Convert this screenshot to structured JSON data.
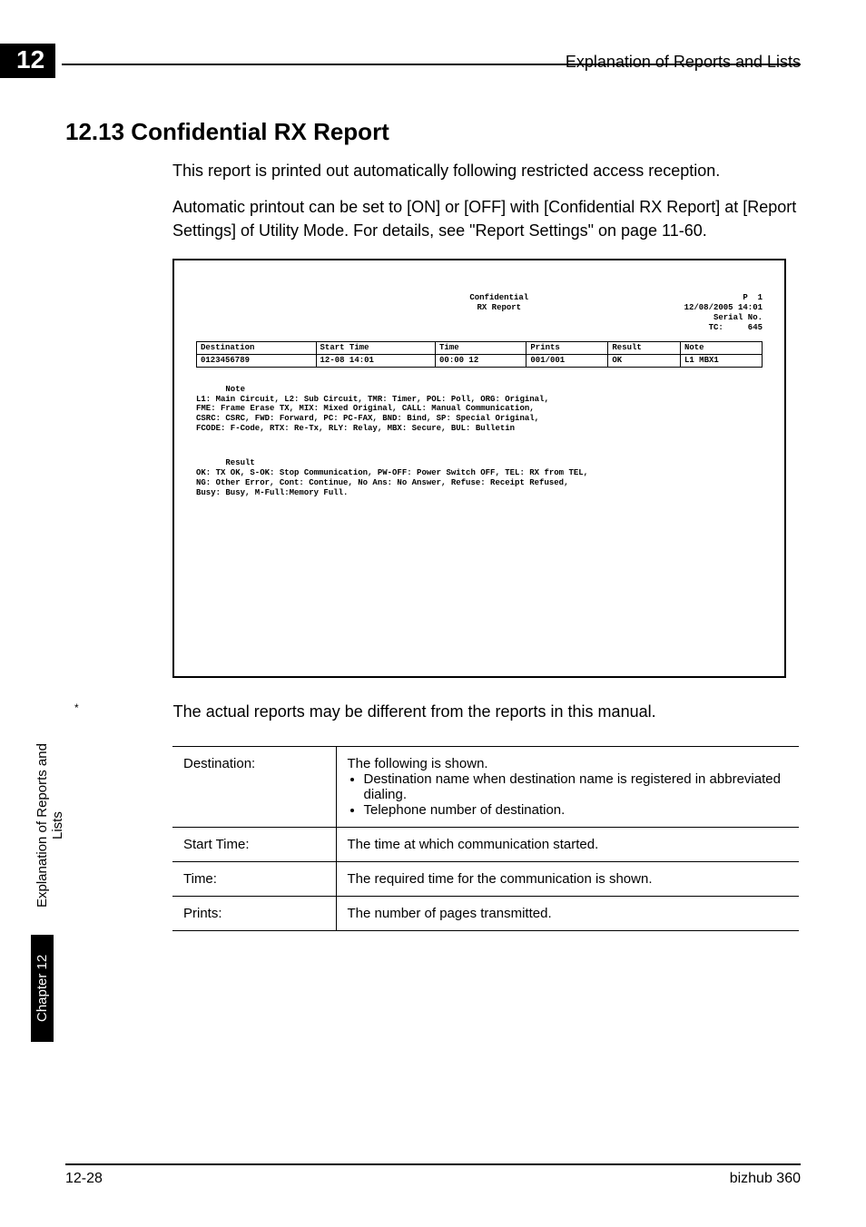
{
  "chapter_badge": "12",
  "header_right": "Explanation of Reports and Lists",
  "heading": "12.13 Confidential RX Report",
  "para1": "This report is printed out automatically following restricted access reception.",
  "para2": "Automatic printout can be set to [ON] or [OFF] with [Confidential RX Report] at [Report Settings] of Utility Mode. For details, see \"Report Settings\" on page 11-60.",
  "report": {
    "title": "Confidential\nRX Report",
    "meta_p": "P  1",
    "meta_datetime": "12/08/2005 14:01",
    "meta_serial_label": "Serial No.",
    "meta_tc_label": "TC:",
    "meta_tc_val": "645",
    "columns": [
      "Destination",
      "Start Time",
      "Time",
      "Prints",
      "Result",
      "Note"
    ],
    "row": [
      "0123456789",
      "12-08 14:01",
      "00:00 12",
      "001/001",
      "OK",
      "L1 MBX1"
    ],
    "note_label": "Note",
    "note_body": "L1: Main Circuit, L2: Sub Circuit, TMR: Timer, POL: Poll, ORG: Original,\nFME: Frame Erase TX, MIX: Mixed Original, CALL: Manual Communication,\nCSRC: CSRC, FWD: Forward, PC: PC-FAX, BND: Bind, SP: Special Original,\nFCODE: F-Code, RTX: Re-Tx, RLY: Relay, MBX: Secure, BUL: Bulletin",
    "result_label": "Result",
    "result_body": "OK: TX OK, S-OK: Stop Communication, PW-OFF: Power Switch OFF, TEL: RX from TEL,\nNG: Other Error, Cont: Continue, No Ans: No Answer, Refuse: Receipt Refused,\nBusy: Busy, M-Full:Memory Full."
  },
  "footnote_star": "*",
  "footnote_text": "The actual reports may be different from the reports in this manual.",
  "defs": [
    {
      "key": "Destination:",
      "intro": "The following is shown.",
      "bullets": [
        "Destination name when destination name is registered in abbreviated dialing.",
        "Telephone number of destination."
      ]
    },
    {
      "key": "Start Time:",
      "val": "The time at which communication started."
    },
    {
      "key": "Time:",
      "val": "The required time for the communication is shown."
    },
    {
      "key": "Prints:",
      "val": "The number of pages transmitted."
    }
  ],
  "side_tab_black": "Chapter 12",
  "side_tab_white": "Explanation of Reports and Lists",
  "footer_left": "12-28",
  "footer_right": "bizhub 360"
}
